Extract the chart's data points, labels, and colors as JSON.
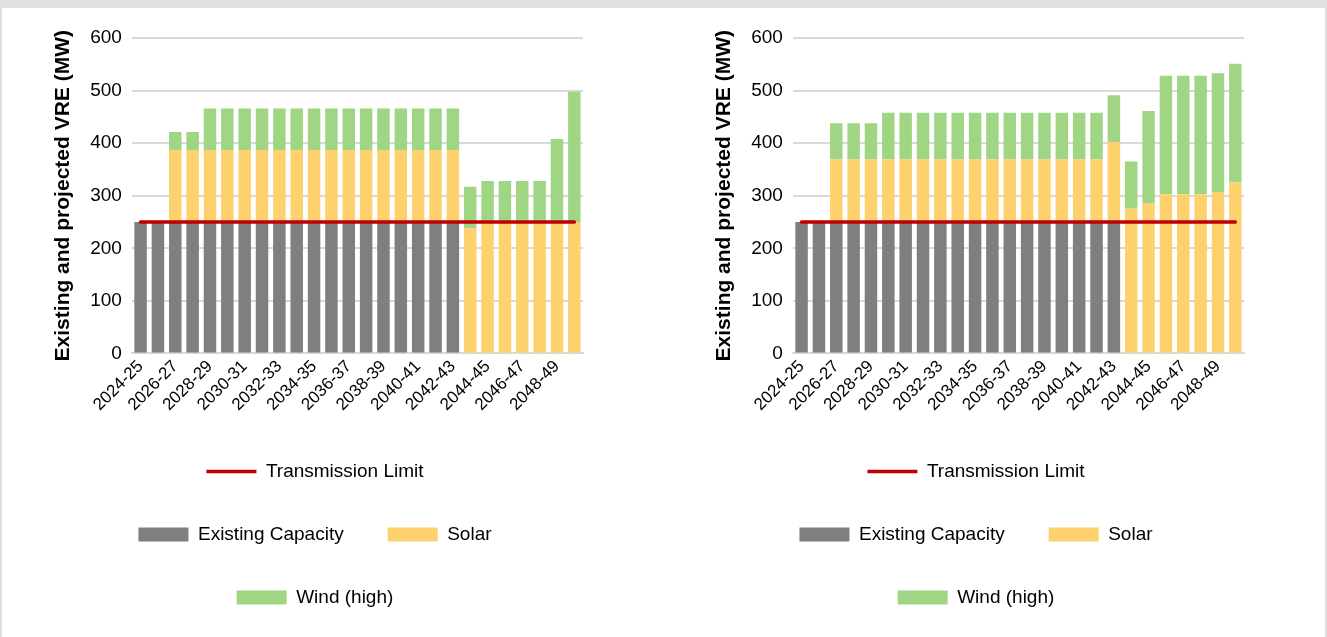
{
  "chart_data": [
    {
      "type": "bar",
      "stacked": true,
      "ylabel": "Existing and projected VRE (MW)",
      "grid": "y",
      "legend": "bottom",
      "ylim": [
        0,
        600
      ],
      "yticks": [
        0,
        100,
        200,
        300,
        400,
        500,
        600
      ],
      "categories": [
        "2024-25",
        null,
        "2026-27",
        null,
        "2028-29",
        null,
        "2030-31",
        null,
        "2032-33",
        null,
        "2034-35",
        null,
        "2036-37",
        null,
        "2038-39",
        null,
        "2040-41",
        null,
        "2042-43",
        null,
        "2044-45",
        null,
        "2046-47",
        null,
        "2048-49",
        null
      ],
      "series": [
        {
          "name": "Existing Capacity",
          "color": "#7f7f7f",
          "values": [
            250,
            250,
            250,
            250,
            250,
            250,
            250,
            250,
            250,
            250,
            250,
            250,
            250,
            250,
            250,
            250,
            250,
            250,
            250,
            null,
            null,
            null,
            null,
            null,
            null,
            null
          ]
        },
        {
          "name": "Solar",
          "color": "#fdd16e",
          "values": [
            null,
            null,
            137,
            137,
            137,
            137,
            137,
            137,
            137,
            137,
            137,
            137,
            137,
            137,
            137,
            137,
            137,
            137,
            137,
            238,
            250,
            250,
            250,
            250,
            250,
            250
          ]
        },
        {
          "name": "Wind (high)",
          "color": "#a0d683",
          "values": [
            null,
            null,
            34,
            34,
            79,
            79,
            79,
            79,
            79,
            79,
            79,
            79,
            79,
            79,
            79,
            79,
            79,
            79,
            79,
            79,
            78,
            78,
            78,
            78,
            158,
            248
          ]
        },
        {
          "name": "Transmission Limit",
          "type": "line",
          "color": "#c00000",
          "values": [
            250,
            250,
            250,
            250,
            250,
            250,
            250,
            250,
            250,
            250,
            250,
            250,
            250,
            250,
            250,
            250,
            250,
            250,
            250,
            250,
            250,
            250,
            250,
            250,
            250,
            250
          ]
        }
      ]
    },
    {
      "type": "bar",
      "stacked": true,
      "ylabel": "Existing and projected VRE (MW)",
      "grid": "y",
      "legend": "bottom",
      "ylim": [
        0,
        600
      ],
      "yticks": [
        0,
        100,
        200,
        300,
        400,
        500,
        600
      ],
      "categories": [
        "2024-25",
        null,
        "2026-27",
        null,
        "2028-29",
        null,
        "2030-31",
        null,
        "2032-33",
        null,
        "2034-35",
        null,
        "2036-37",
        null,
        "2038-39",
        null,
        "2040-41",
        null,
        "2042-43",
        null,
        "2044-45",
        null,
        "2046-47",
        null,
        "2048-49",
        null
      ],
      "series": [
        {
          "name": "Existing Capacity",
          "color": "#7f7f7f",
          "values": [
            250,
            250,
            250,
            250,
            250,
            250,
            250,
            250,
            250,
            250,
            250,
            250,
            250,
            250,
            250,
            250,
            250,
            250,
            250,
            null,
            null,
            null,
            null,
            null,
            null,
            null
          ]
        },
        {
          "name": "Solar",
          "color": "#fdd16e",
          "values": [
            null,
            null,
            119,
            119,
            119,
            119,
            119,
            119,
            119,
            119,
            119,
            119,
            119,
            119,
            119,
            119,
            119,
            119,
            152,
            275,
            286,
            303,
            303,
            303,
            307,
            325
          ]
        },
        {
          "name": "Wind (high)",
          "color": "#a0d683",
          "values": [
            null,
            null,
            69,
            69,
            69,
            89,
            89,
            89,
            89,
            89,
            89,
            89,
            89,
            89,
            89,
            89,
            89,
            89,
            89,
            90,
            175,
            225,
            225,
            225,
            226,
            226
          ]
        },
        {
          "name": "Transmission Limit",
          "type": "line",
          "color": "#c00000",
          "values": [
            250,
            250,
            250,
            250,
            250,
            250,
            250,
            250,
            250,
            250,
            250,
            250,
            250,
            250,
            250,
            250,
            250,
            250,
            250,
            250,
            250,
            250,
            250,
            250,
            250,
            250
          ]
        }
      ]
    }
  ]
}
